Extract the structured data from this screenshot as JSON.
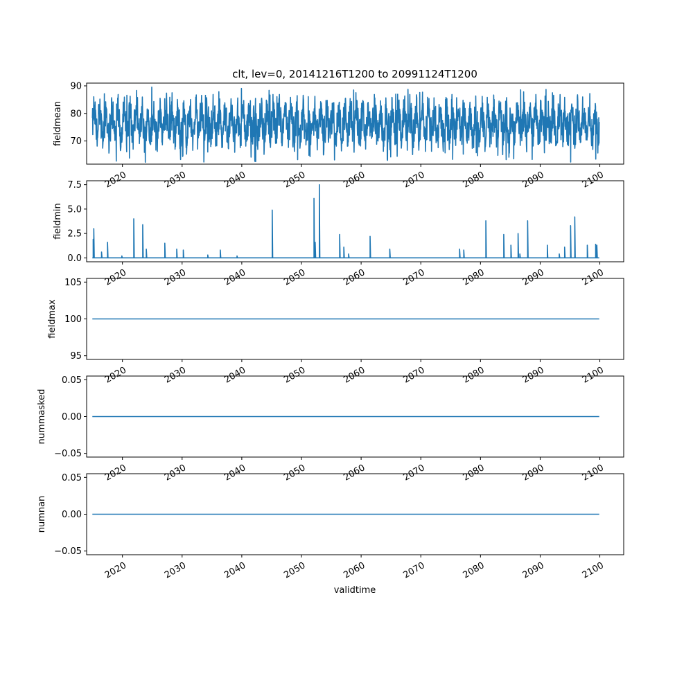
{
  "figure": {
    "title": "clt, lev=0, 20141216T1200 to 20991124T1200",
    "xlabel": "validtime",
    "line_color": "#1f77b4"
  },
  "chart_data": [
    {
      "type": "line",
      "ylabel": "fieldmean",
      "xlim": [
        2014.0,
        2104.0
      ],
      "ylim": [
        61.6,
        91.0
      ],
      "yticks": [
        70,
        80,
        90
      ],
      "ytick_labels": [
        "70",
        "80",
        "90"
      ],
      "xticks": [
        2020,
        2030,
        2040,
        2050,
        2060,
        2070,
        2080,
        2090,
        2100
      ],
      "xtick_labels": [
        "2020",
        "2030",
        "2040",
        "2050",
        "2060",
        "2070",
        "2080",
        "2090",
        "2100"
      ],
      "grid": false,
      "series": [
        {
          "kind": "seasonal-oscillation",
          "x_start": 2014.96,
          "x_end": 2099.9,
          "mean": 76.3,
          "min": 62.3,
          "max": 89.6
        }
      ]
    },
    {
      "type": "line",
      "ylabel": "fieldmin",
      "xlim": [
        2014.0,
        2104.0
      ],
      "ylim": [
        -0.4,
        7.9
      ],
      "yticks": [
        0.0,
        2.5,
        5.0,
        7.5
      ],
      "ytick_labels": [
        "0.0",
        "2.5",
        "5.0",
        "7.5"
      ],
      "xticks": [
        2020,
        2030,
        2040,
        2050,
        2060,
        2070,
        2080,
        2090,
        2100
      ],
      "xtick_labels": [
        "2020",
        "2030",
        "2040",
        "2050",
        "2060",
        "2070",
        "2080",
        "2090",
        "2100"
      ],
      "grid": false,
      "series": [
        {
          "kind": "spikes",
          "x_start": 2014.96,
          "x_end": 2099.9,
          "baseline": 0.0,
          "spikes": [
            [
              2015.1,
              1.9
            ],
            [
              2015.2,
              3.0
            ],
            [
              2016.5,
              0.6
            ],
            [
              2017.5,
              1.6
            ],
            [
              2019.9,
              0.2
            ],
            [
              2021.9,
              4.0
            ],
            [
              2023.4,
              3.4
            ],
            [
              2024.0,
              0.9
            ],
            [
              2027.1,
              1.5
            ],
            [
              2029.1,
              0.9
            ],
            [
              2030.2,
              0.8
            ],
            [
              2034.3,
              0.3
            ],
            [
              2036.4,
              0.8
            ],
            [
              2039.2,
              0.2
            ],
            [
              2045.1,
              4.9
            ],
            [
              2052.1,
              6.1
            ],
            [
              2052.3,
              1.6
            ],
            [
              2053.0,
              7.5
            ],
            [
              2056.4,
              2.4
            ],
            [
              2057.1,
              1.1
            ],
            [
              2057.9,
              0.4
            ],
            [
              2061.5,
              2.2
            ],
            [
              2064.8,
              0.9
            ],
            [
              2076.5,
              0.9
            ],
            [
              2077.2,
              0.8
            ],
            [
              2080.9,
              3.8
            ],
            [
              2083.9,
              2.4
            ],
            [
              2085.1,
              1.3
            ],
            [
              2086.3,
              2.5
            ],
            [
              2086.6,
              0.4
            ],
            [
              2087.9,
              3.8
            ],
            [
              2091.2,
              1.3
            ],
            [
              2093.2,
              0.4
            ],
            [
              2094.1,
              1.1
            ],
            [
              2095.1,
              3.3
            ],
            [
              2095.8,
              4.2
            ],
            [
              2097.9,
              1.3
            ],
            [
              2099.3,
              1.4
            ],
            [
              2099.5,
              1.3
            ]
          ]
        }
      ]
    },
    {
      "type": "line",
      "ylabel": "fieldmax",
      "xlim": [
        2014.0,
        2104.0
      ],
      "ylim": [
        94.5,
        105.5
      ],
      "yticks": [
        95,
        100,
        105
      ],
      "ytick_labels": [
        "95",
        "100",
        "105"
      ],
      "xticks": [
        2020,
        2030,
        2040,
        2050,
        2060,
        2070,
        2080,
        2090,
        2100
      ],
      "xtick_labels": [
        "2020",
        "2030",
        "2040",
        "2050",
        "2060",
        "2070",
        "2080",
        "2090",
        "2100"
      ],
      "grid": false,
      "series": [
        {
          "kind": "constant",
          "x_start": 2014.96,
          "x_end": 2099.9,
          "value": 100
        }
      ]
    },
    {
      "type": "line",
      "ylabel": "nummasked",
      "xlim": [
        2014.0,
        2104.0
      ],
      "ylim": [
        -0.055,
        0.055
      ],
      "yticks": [
        -0.05,
        0.0,
        0.05
      ],
      "ytick_labels": [
        "−0.05",
        "0.00",
        "0.05"
      ],
      "xticks": [
        2020,
        2030,
        2040,
        2050,
        2060,
        2070,
        2080,
        2090,
        2100
      ],
      "xtick_labels": [
        "2020",
        "2030",
        "2040",
        "2050",
        "2060",
        "2070",
        "2080",
        "2090",
        "2100"
      ],
      "grid": false,
      "series": [
        {
          "kind": "constant",
          "x_start": 2014.96,
          "x_end": 2099.9,
          "value": 0
        }
      ]
    },
    {
      "type": "line",
      "ylabel": "numnan",
      "xlim": [
        2014.0,
        2104.0
      ],
      "ylim": [
        -0.055,
        0.055
      ],
      "yticks": [
        -0.05,
        0.0,
        0.05
      ],
      "ytick_labels": [
        "−0.05",
        "0.00",
        "0.05"
      ],
      "xticks": [
        2020,
        2030,
        2040,
        2050,
        2060,
        2070,
        2080,
        2090,
        2100
      ],
      "xtick_labels": [
        "2020",
        "2030",
        "2040",
        "2050",
        "2060",
        "2070",
        "2080",
        "2090",
        "2100"
      ],
      "grid": false,
      "series": [
        {
          "kind": "constant",
          "x_start": 2014.96,
          "x_end": 2099.9,
          "value": 0
        }
      ]
    }
  ]
}
